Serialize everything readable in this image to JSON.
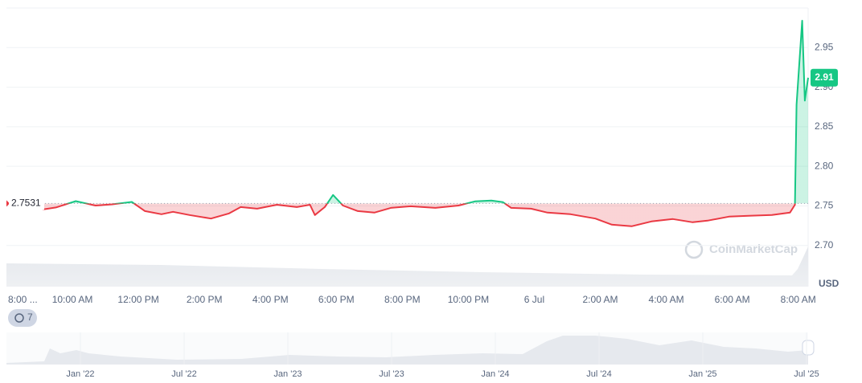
{
  "chart_data": {
    "type": "line",
    "x": [
      1.1,
      1.5,
      2.1,
      2.7,
      3.2,
      3.8,
      4.2,
      4.7,
      5.05,
      5.55,
      6.2,
      6.75,
      7.1,
      7.6,
      8.2,
      8.8,
      9.2,
      9.35,
      9.65,
      9.9,
      10.2,
      10.65,
      11.15,
      11.65,
      12.25,
      13.0,
      13.7,
      14.2,
      14.7,
      15.05,
      15.3,
      15.9,
      16.4,
      17.1,
      17.85,
      18.35,
      18.95,
      19.55,
      20.2,
      20.8,
      21.25,
      21.9,
      22.5,
      23.2,
      23.75,
      23.9,
      23.95,
      24.12,
      24.2,
      24.3
    ],
    "values": [
      2.7455,
      2.748,
      2.756,
      2.7505,
      2.752,
      2.755,
      2.7435,
      2.7395,
      2.7425,
      2.7385,
      2.734,
      2.7405,
      2.7485,
      2.7465,
      2.7515,
      2.7485,
      2.7515,
      2.7385,
      2.7485,
      2.7638,
      2.7505,
      2.7435,
      2.7415,
      2.7475,
      2.7495,
      2.7475,
      2.7505,
      2.7557,
      2.7567,
      2.7547,
      2.7475,
      2.7465,
      2.7415,
      2.7395,
      2.734,
      2.7263,
      2.7243,
      2.7304,
      2.7334,
      2.7294,
      2.7314,
      2.7365,
      2.7375,
      2.7385,
      2.7415,
      2.7515,
      2.878,
      2.984,
      2.883,
      2.912
    ],
    "up_color": "#16c784",
    "down_color": "#ea3943",
    "baseline": 2.7531,
    "current_label": "2.91",
    "xlim": [
      0,
      24.3
    ],
    "xticks": [
      {
        "value": 0,
        "label": "8:00 ..."
      },
      {
        "value": 2,
        "label": "10:00 AM"
      },
      {
        "value": 4,
        "label": "12:00 PM"
      },
      {
        "value": 6,
        "label": "2:00 PM"
      },
      {
        "value": 8,
        "label": "4:00 PM"
      },
      {
        "value": 10,
        "label": "6:00 PM"
      },
      {
        "value": 12,
        "label": "8:00 PM"
      },
      {
        "value": 14,
        "label": "10:00 PM"
      },
      {
        "value": 16,
        "label": "6 Jul"
      },
      {
        "value": 18,
        "label": "2:00 AM"
      },
      {
        "value": 20,
        "label": "4:00 AM"
      },
      {
        "value": 22,
        "label": "6:00 AM"
      },
      {
        "value": 24,
        "label": "8:00 AM"
      }
    ],
    "ylim": [
      2.648,
      3.0
    ],
    "yticks": [
      {
        "value": 2.7,
        "label": "2.70"
      },
      2.75,
      {
        "value": 2.8,
        "label": "2.80"
      },
      2.85,
      {
        "value": 2.9,
        "label": "2.90"
      },
      2.95
    ],
    "grid": true,
    "unit_label": "USD",
    "watermark": "CoinMarketCap",
    "range_badge": "7",
    "navigator_labels": [
      "Jan '22",
      "Jul '22",
      "Jan '23",
      "Jul '23",
      "Jan '24",
      "Jul '24",
      "Jan '25",
      "Jul '25"
    ]
  }
}
